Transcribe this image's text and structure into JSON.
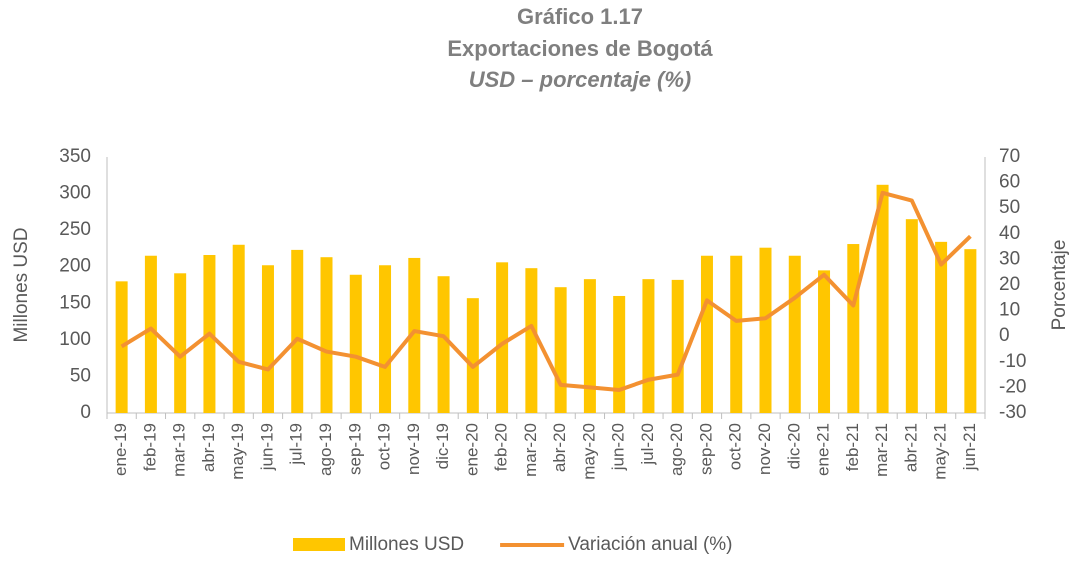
{
  "chart_data": {
    "type": "bar_line",
    "title": "Gráfico 1.17",
    "subtitle": "Exportaciones de Bogotá",
    "units": "USD – porcentaje (%)",
    "y_label": "Millones USD",
    "y2_label": "Porcentaje",
    "categories": [
      "ene-19",
      "feb-19",
      "mar-19",
      "abr-19",
      "may-19",
      "jun-19",
      "jul-19",
      "ago-19",
      "sep-19",
      "oct-19",
      "nov-19",
      "dic-19",
      "ene-20",
      "feb-20",
      "mar-20",
      "abr-20",
      "may-20",
      "jun-20",
      "jul-20",
      "ago-20",
      "sep-20",
      "oct-20",
      "nov-20",
      "dic-20",
      "ene-21",
      "feb-21",
      "mar-21",
      "abr-21",
      "may-21",
      "jun-21"
    ],
    "series": [
      {
        "name": "Millones USD",
        "color": "#ffc600",
        "type": "bar",
        "values": [
          180,
          215,
          191,
          216,
          230,
          202,
          223,
          213,
          189,
          202,
          212,
          187,
          157,
          206,
          198,
          172,
          183,
          160,
          183,
          182,
          215,
          215,
          226,
          215,
          195,
          231,
          312,
          265,
          234,
          224
        ]
      },
      {
        "name": "Variación anual (%)",
        "color": "#f39131",
        "type": "line",
        "axis": "y2",
        "values": [
          -4,
          3,
          -8,
          1,
          -10,
          -13,
          -1,
          -6,
          -8,
          -12,
          2,
          0,
          -12,
          -3,
          4,
          -19,
          -20,
          -21,
          -17,
          -15,
          14,
          6,
          7,
          15,
          24,
          12,
          56,
          53,
          28,
          39
        ]
      }
    ],
    "ylim": [
      0,
      350
    ],
    "yticks": [
      0,
      50,
      100,
      150,
      200,
      250,
      300,
      350
    ],
    "y2lim": [
      -30,
      70
    ],
    "y2ticks": [
      -30,
      -20,
      -10,
      0,
      10,
      20,
      30,
      40,
      50,
      60,
      70
    ],
    "legend": "bottom"
  }
}
